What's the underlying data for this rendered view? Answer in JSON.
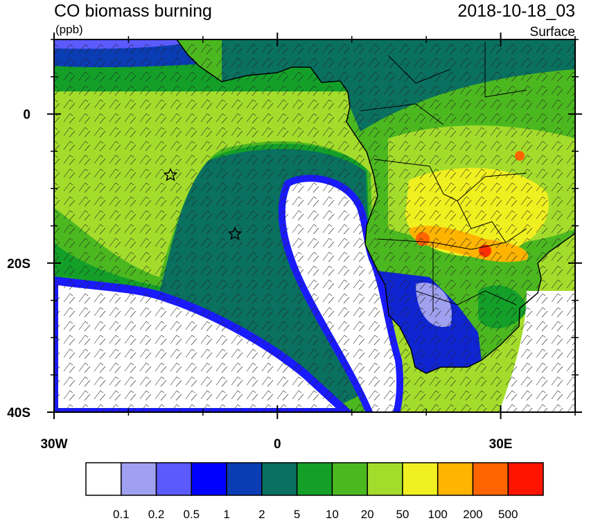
{
  "header": {
    "title": "CO biomass burning",
    "units": "(ppb)",
    "time": "2018-10-18_03",
    "level": "Surface"
  },
  "map": {
    "xlim": [
      -30,
      40
    ],
    "ylim": [
      -40,
      10
    ],
    "xticks": [
      {
        "value": -30,
        "label": "30W"
      },
      0,
      {
        "value": 30,
        "label": "30E"
      }
    ],
    "yticks": [
      0,
      {
        "value": -20,
        "label": "20S"
      },
      {
        "value": -40,
        "label": "40S"
      }
    ],
    "xminorticks": [
      -20,
      -10,
      10,
      20,
      40
    ],
    "yminorticks": [
      10,
      5,
      -5,
      -10,
      -15,
      -25,
      -30,
      -35
    ]
  },
  "colorbar": {
    "levels": [
      0.1,
      0.2,
      0.5,
      1,
      2,
      5,
      10,
      20,
      50,
      100,
      200,
      500
    ],
    "colors": [
      "#ffffff",
      "#a0a0f0",
      "#5a5aff",
      "#0000ff",
      "#0a3cb4",
      "#0a7060",
      "#14a028",
      "#4cb820",
      "#a4dc2c",
      "#f0f020",
      "#ffb400",
      "#ff6400",
      "#ff1400"
    ]
  }
}
